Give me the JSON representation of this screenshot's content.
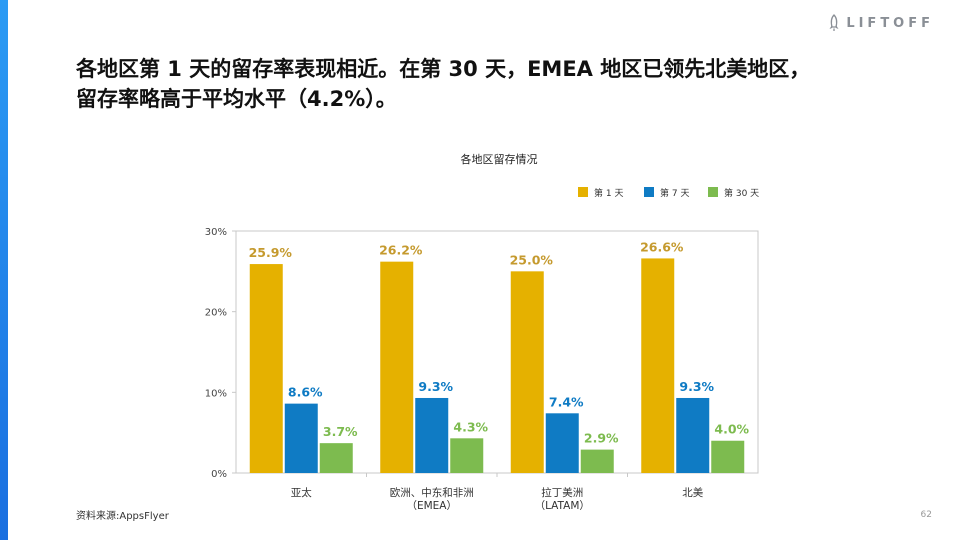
{
  "brand": {
    "logo_text": "LIFTOFF"
  },
  "headline": {
    "line1": "各地区第 1 天的留存率表现相近。在第 30 天，EMEA 地区已领先北美地区，",
    "line2": "留存率略高于平均水平（4.2%）。"
  },
  "footer": {
    "source": "资料来源:AppsFlyer",
    "page_number": "62"
  },
  "colors": {
    "accent_blue_bar": "#1a6fe0",
    "day1": "#e5b100",
    "day7": "#0f7bc4",
    "day30": "#7dbb4f",
    "day1_label": "#c59a2e"
  },
  "chart_data": {
    "type": "bar",
    "title": "各地区留存情况",
    "categories": [
      [
        "亚太"
      ],
      [
        "欧洲、中东和非洲",
        "（EMEA）"
      ],
      [
        "拉丁美洲",
        "（LATAM）"
      ],
      [
        "北美"
      ]
    ],
    "series": [
      {
        "name": "第 1 天",
        "values": [
          25.9,
          26.2,
          25.0,
          26.6
        ],
        "labels": [
          "25.9%",
          "26.2%",
          "25.0%",
          "26.6%"
        ]
      },
      {
        "name": "第 7 天",
        "values": [
          8.6,
          9.3,
          7.4,
          9.3
        ],
        "labels": [
          "8.6%",
          "9.3%",
          "7.4%",
          "9.3%"
        ]
      },
      {
        "name": "第 30 天",
        "values": [
          3.7,
          4.3,
          2.9,
          4.0
        ],
        "labels": [
          "3.7%",
          "4.3%",
          "2.9%",
          "4.0%"
        ]
      }
    ],
    "yticks": [
      0,
      10,
      20,
      30
    ],
    "ytick_labels": [
      "0%",
      "10%",
      "20%",
      "30%"
    ],
    "ylim": [
      0,
      30
    ],
    "xlabel": "",
    "ylabel": "",
    "legend_position": "top-right",
    "grid": false
  }
}
